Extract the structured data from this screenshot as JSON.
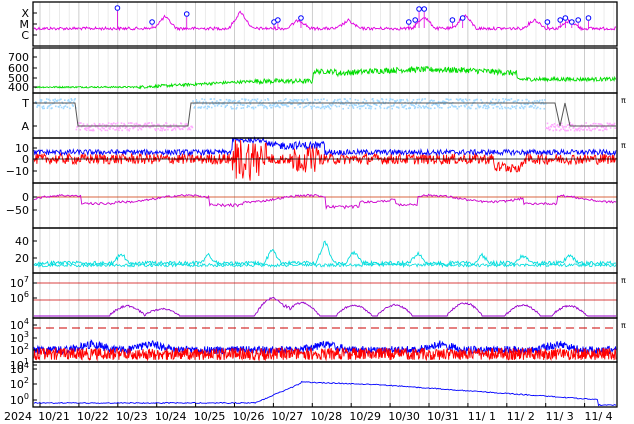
{
  "chart_data": {
    "type": "line",
    "title": "",
    "x": {
      "year_label": "2024",
      "tick_labels": [
        "10/21",
        "10/22",
        "10/23",
        "10/24",
        "10/25",
        "10/26",
        "10/27",
        "10/28",
        "10/29",
        "10/30",
        "10/31",
        "11/ 1",
        "11/ 2",
        "11/ 3",
        "11/ 4"
      ],
      "grid": true
    },
    "panels": [
      {
        "id": "flare-class",
        "ticks": [
          "X",
          "M",
          "C"
        ],
        "series": [
          {
            "color": "#e000e0",
            "markers": "circle-flags",
            "marker_color": "#0000ff",
            "marker_times": [
              3.25,
              4.6,
              5.95,
              9.35,
              9.5,
              10.4,
              14.6,
              14.85,
              15.0,
              15.2,
              16.3,
              16.7,
              20.0,
              20.5,
              20.7,
              20.95,
              21.2,
              21.6
            ]
          }
        ]
      },
      {
        "id": "speed",
        "ticks": [
          "700",
          "600",
          "500",
          "400"
        ],
        "ylim": [
          350,
          750
        ],
        "series": [
          {
            "color": "#00dd00"
          }
        ]
      },
      {
        "id": "sector",
        "ticks": [
          "T",
          "A"
        ],
        "right_label": "π",
        "series": [
          {
            "color": "#a0d8ff"
          },
          {
            "color": "#ffa8ff"
          },
          {
            "color": "#555555"
          }
        ]
      },
      {
        "id": "bfield",
        "ticks": [
          "10",
          "0",
          "−10"
        ],
        "ylim": [
          -18,
          16
        ],
        "right_label": "π",
        "series": [
          {
            "color": "#0000ff"
          },
          {
            "color": "#ff0000"
          }
        ]
      },
      {
        "id": "dst",
        "ticks": [
          "0",
          "−50"
        ],
        "ylim": [
          -90,
          25
        ],
        "series": [
          {
            "color": "#cc00cc"
          }
        ]
      },
      {
        "id": "kp",
        "ticks": [
          "40",
          "20"
        ],
        "ylim": [
          0,
          50
        ],
        "series": [
          {
            "color": "#00dddd"
          },
          {
            "color": "#00dddd"
          }
        ]
      },
      {
        "id": "proton-flux",
        "ticks": [
          "10^7",
          "10^6"
        ],
        "right_label": "π",
        "series": [
          {
            "color": "#9900cc"
          }
        ]
      },
      {
        "id": "xray-electron",
        "ticks": [
          "10^4",
          "10^3",
          "10^2",
          "10^1"
        ],
        "right_label": "π",
        "series": [
          {
            "color": "#0000ff"
          },
          {
            "color": "#ff0000"
          }
        ]
      },
      {
        "id": "electron-flux",
        "ticks": [
          "10^4",
          "10^2",
          "10^0"
        ],
        "series": [
          {
            "color": "#0000ff"
          }
        ]
      }
    ]
  }
}
